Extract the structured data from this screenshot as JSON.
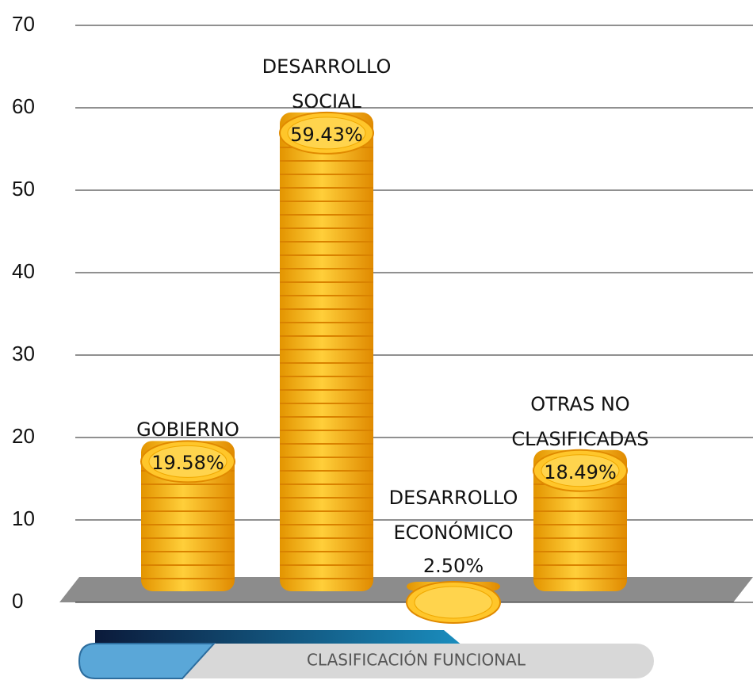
{
  "chart_data": {
    "type": "bar",
    "categories": [
      "GOBIERNO",
      "DESARROLLO SOCIAL",
      "DESARROLLO ECONÓMICO",
      "OTRAS NO CLASIFICADAS"
    ],
    "values": [
      19.58,
      59.43,
      2.5,
      18.49
    ],
    "value_labels": [
      "19.58%",
      "59.43%",
      "2.50%",
      "18.49%"
    ],
    "color": "#f5b000",
    "ylim": [
      0,
      70
    ],
    "yticks": [
      0,
      10,
      20,
      30,
      40,
      50,
      60,
      70
    ],
    "grid": true,
    "xlabel": "CLASIFICACIÓN FUNCIONAL"
  }
}
